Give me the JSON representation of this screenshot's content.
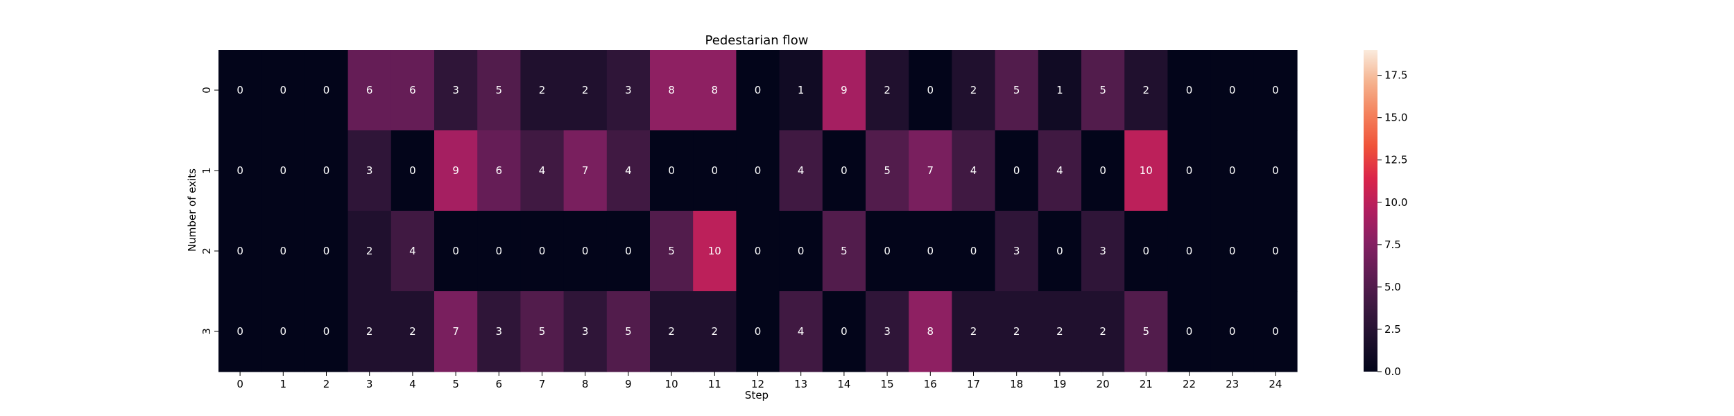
{
  "chart_data": {
    "type": "heatmap",
    "title": "Pedestarian flow",
    "xlabel": "Step",
    "ylabel": "Number of exits",
    "x": [
      "0",
      "1",
      "2",
      "3",
      "4",
      "5",
      "6",
      "7",
      "8",
      "9",
      "10",
      "11",
      "12",
      "13",
      "14",
      "15",
      "16",
      "17",
      "18",
      "19",
      "20",
      "21",
      "22",
      "23",
      "24"
    ],
    "y": [
      "0",
      "1",
      "2",
      "3"
    ],
    "values": [
      [
        0,
        0,
        0,
        6,
        6,
        3,
        5,
        2,
        2,
        3,
        8,
        8,
        0,
        1,
        9,
        2,
        0,
        2,
        5,
        1,
        5,
        2,
        0,
        0,
        0
      ],
      [
        0,
        0,
        0,
        3,
        0,
        9,
        6,
        4,
        7,
        4,
        0,
        0,
        0,
        4,
        0,
        5,
        7,
        4,
        0,
        4,
        0,
        10,
        0,
        0,
        0
      ],
      [
        0,
        0,
        0,
        2,
        4,
        0,
        0,
        0,
        0,
        0,
        5,
        10,
        0,
        0,
        5,
        0,
        0,
        0,
        3,
        0,
        3,
        0,
        0,
        0,
        0
      ],
      [
        0,
        0,
        0,
        2,
        2,
        7,
        3,
        5,
        3,
        5,
        2,
        2,
        0,
        4,
        0,
        3,
        8,
        2,
        2,
        2,
        2,
        5,
        0,
        0,
        0
      ]
    ],
    "colorbar": {
      "range": [
        0,
        19
      ],
      "ticks": [
        "0.0",
        "2.5",
        "5.0",
        "7.5",
        "10.0",
        "12.5",
        "15.0",
        "17.5"
      ],
      "colormap": "rocket"
    },
    "legend": "none",
    "grid": false
  }
}
